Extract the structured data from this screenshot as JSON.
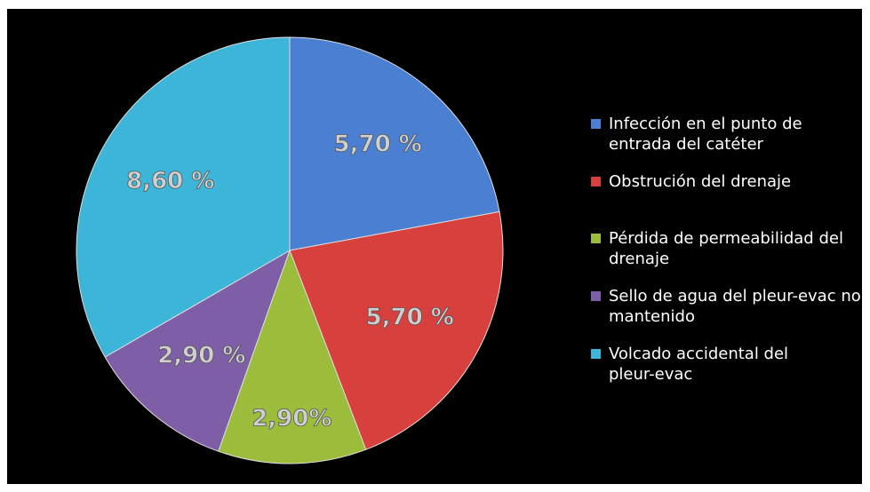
{
  "chart_data": {
    "type": "pie",
    "categories": [
      "Infección en el punto de entrada del catéter",
      "Obstrución del drenaje",
      "Pérdida de permeabilidad del drenaje",
      "Sello de agua del pleur-evac no mantenido",
      "Volcado accidental del pleur-evac"
    ],
    "values": [
      5.7,
      5.7,
      2.9,
      2.9,
      8.6
    ],
    "value_labels": [
      "5,70 %",
      "5,70 %",
      "2,90%",
      "2,90 %",
      "8,60 %"
    ],
    "colors": [
      "#4a7fd2",
      "#d8403d",
      "#9cbc3c",
      "#7e5ea6",
      "#3db5d9"
    ],
    "legend": "right"
  }
}
